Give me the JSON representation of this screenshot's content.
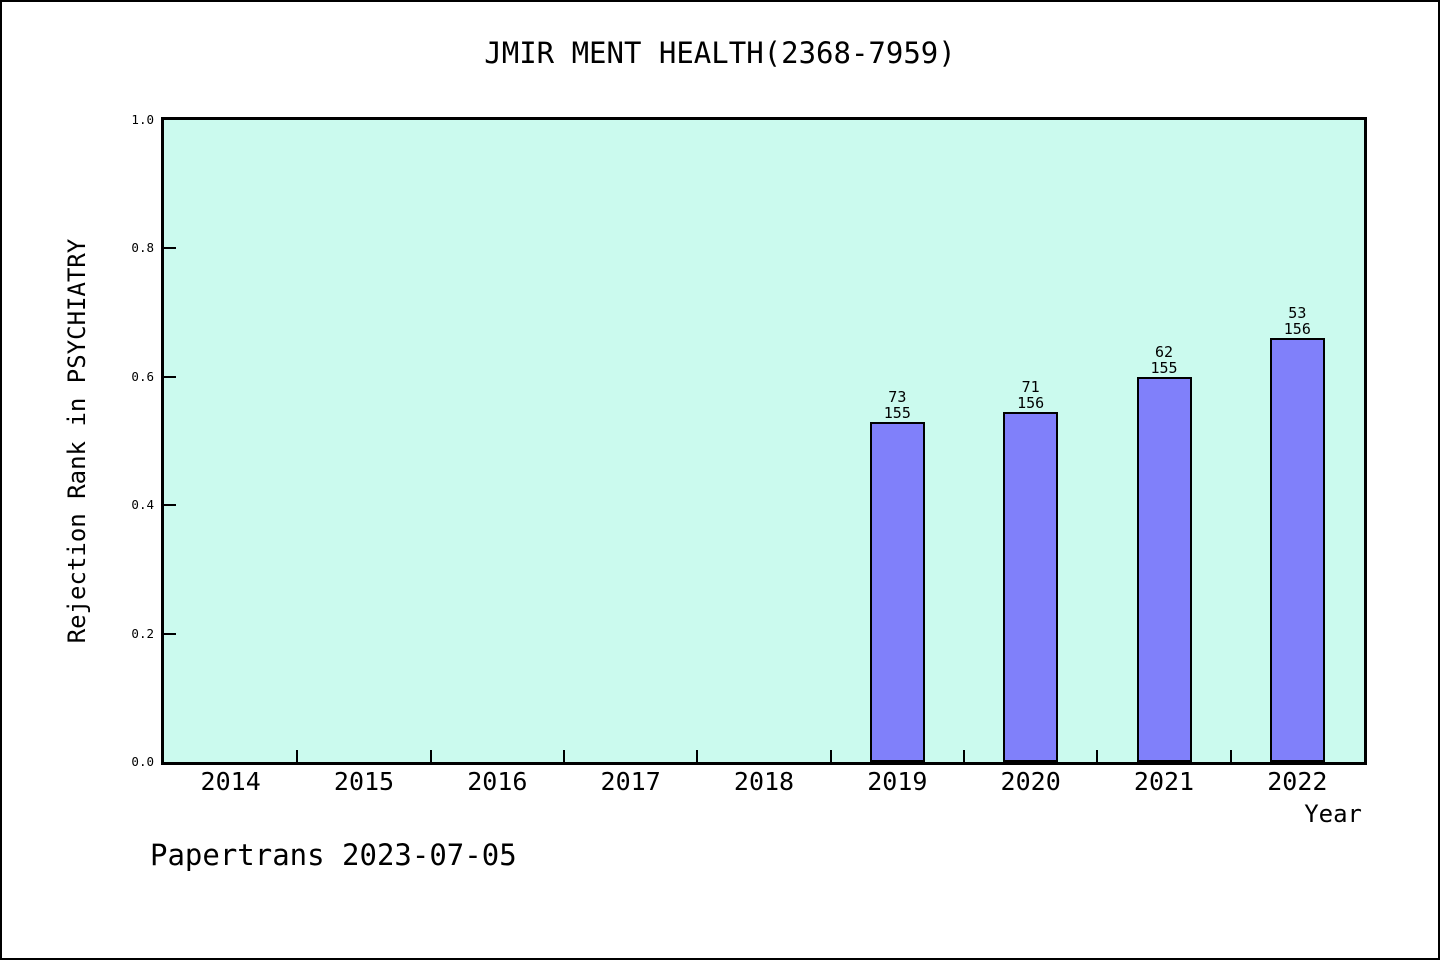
{
  "page": {
    "footer": "Papertrans 2023-07-05"
  },
  "chart_data": {
    "type": "bar",
    "title": "JMIR MENT HEALTH(2368-7959)",
    "xlabel": "Year",
    "ylabel": "Rejection Rank in PSYCHIATRY",
    "categories": [
      "2014",
      "2015",
      "2016",
      "2017",
      "2018",
      "2019",
      "2020",
      "2021",
      "2022"
    ],
    "ytick_labels": [
      "0.0",
      "0.2",
      "0.4",
      "0.6",
      "0.8",
      "1.0"
    ],
    "ylim": [
      0.0,
      1.0
    ],
    "grid": false,
    "legend": false,
    "bars": [
      {
        "category": "2019",
        "rank": 73,
        "total": 155,
        "value": 0.529
      },
      {
        "category": "2020",
        "rank": 71,
        "total": 156,
        "value": 0.545
      },
      {
        "category": "2021",
        "rank": 62,
        "total": 155,
        "value": 0.6
      },
      {
        "category": "2022",
        "rank": 53,
        "total": 156,
        "value": 0.66
      }
    ],
    "colors": {
      "plot_background": "#cbfaee",
      "bar_fill": "#8080fa",
      "bar_border": "#000000",
      "frame": "#000000",
      "text": "#000000"
    }
  }
}
